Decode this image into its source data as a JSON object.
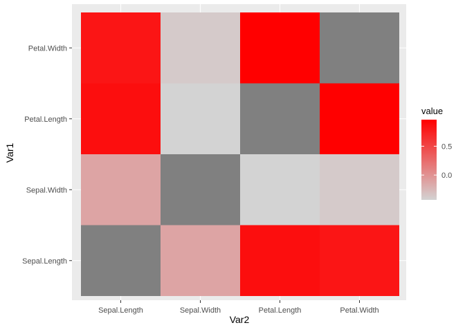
{
  "chart_data": {
    "type": "heatmap",
    "title": "",
    "xlabel": "Var2",
    "ylabel": "Var1",
    "x_categories": [
      "Sepal.Length",
      "Sepal.Width",
      "Petal.Length",
      "Petal.Width"
    ],
    "y_categories": [
      "Sepal.Length",
      "Sepal.Width",
      "Petal.Length",
      "Petal.Width"
    ],
    "values": [
      {
        "var1": "Sepal.Length",
        "var2": "Sepal.Length",
        "value": null
      },
      {
        "var1": "Sepal.Length",
        "var2": "Sepal.Width",
        "value": -0.12
      },
      {
        "var1": "Sepal.Length",
        "var2": "Petal.Length",
        "value": 0.87
      },
      {
        "var1": "Sepal.Length",
        "var2": "Petal.Width",
        "value": 0.82
      },
      {
        "var1": "Sepal.Width",
        "var2": "Sepal.Length",
        "value": -0.12
      },
      {
        "var1": "Sepal.Width",
        "var2": "Sepal.Width",
        "value": null
      },
      {
        "var1": "Sepal.Width",
        "var2": "Petal.Length",
        "value": -0.43
      },
      {
        "var1": "Sepal.Width",
        "var2": "Petal.Width",
        "value": -0.37
      },
      {
        "var1": "Petal.Length",
        "var2": "Sepal.Length",
        "value": 0.87
      },
      {
        "var1": "Petal.Length",
        "var2": "Sepal.Width",
        "value": -0.43
      },
      {
        "var1": "Petal.Length",
        "var2": "Petal.Length",
        "value": null
      },
      {
        "var1": "Petal.Length",
        "var2": "Petal.Width",
        "value": 0.96
      },
      {
        "var1": "Petal.Width",
        "var2": "Sepal.Length",
        "value": 0.82
      },
      {
        "var1": "Petal.Width",
        "var2": "Sepal.Width",
        "value": -0.37
      },
      {
        "var1": "Petal.Width",
        "var2": "Petal.Length",
        "value": 0.96
      },
      {
        "var1": "Petal.Width",
        "var2": "Petal.Width",
        "value": null
      }
    ],
    "na_color": "#808080",
    "legend": {
      "title": "value",
      "position": "right",
      "ticks": [
        0.0,
        0.5
      ],
      "tick_labels": [
        "0.0",
        "0.5"
      ],
      "range": [
        -0.43,
        0.96
      ],
      "low_color": "#d3d3d3",
      "high_color": "#ff0000"
    },
    "panel_background": "#ebebeb",
    "grid": true
  }
}
